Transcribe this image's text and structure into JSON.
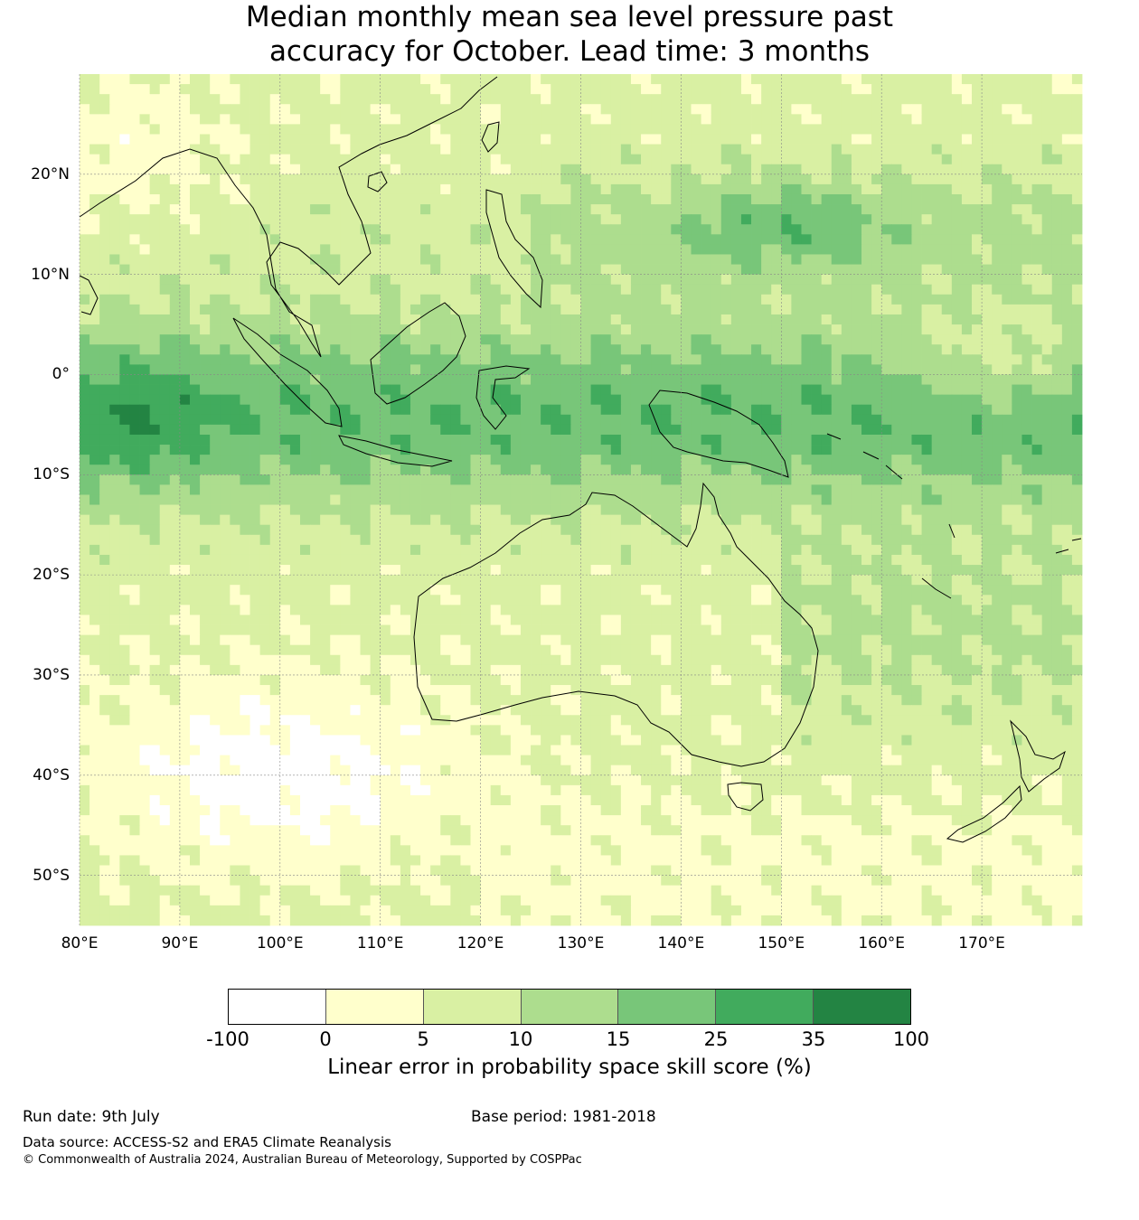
{
  "title_line1": "Median monthly mean sea level pressure past",
  "title_line2": "accuracy for October. Lead time: 3 months",
  "axes": {
    "lat_labels": [
      "20°N",
      "10°N",
      "0°",
      "10°S",
      "20°S",
      "30°S",
      "40°S",
      "50°S"
    ],
    "lon_labels": [
      "80°E",
      "90°E",
      "100°E",
      "110°E",
      "120°E",
      "130°E",
      "140°E",
      "150°E",
      "160°E",
      "170°E"
    ],
    "lat_values": [
      20,
      10,
      0,
      -10,
      -20,
      -30,
      -40,
      -50
    ],
    "lon_values": [
      80,
      90,
      100,
      110,
      120,
      130,
      140,
      150,
      160,
      170
    ],
    "lon_range": [
      80,
      180
    ],
    "lat_range": [
      -55,
      30
    ]
  },
  "colorbar": {
    "ticks": [
      "-100",
      "0",
      "5",
      "10",
      "15",
      "25",
      "35",
      "100"
    ],
    "colors": [
      "#ffffff",
      "#ffffcc",
      "#d9f0a3",
      "#addd8e",
      "#78c679",
      "#41ab5d",
      "#238443"
    ],
    "label": "Linear error in probability space skill score (%)"
  },
  "footer": {
    "run_date": "Run date: 9th July",
    "base_period": "Base period: 1981-2018",
    "data_source": "Data source: ACCESS-S2 and ERA5 Climate Reanalysis",
    "copyright": "© Commonwealth of Australia 2024, Australian Bureau of Meteorology, Supported by COSPPac"
  }
}
